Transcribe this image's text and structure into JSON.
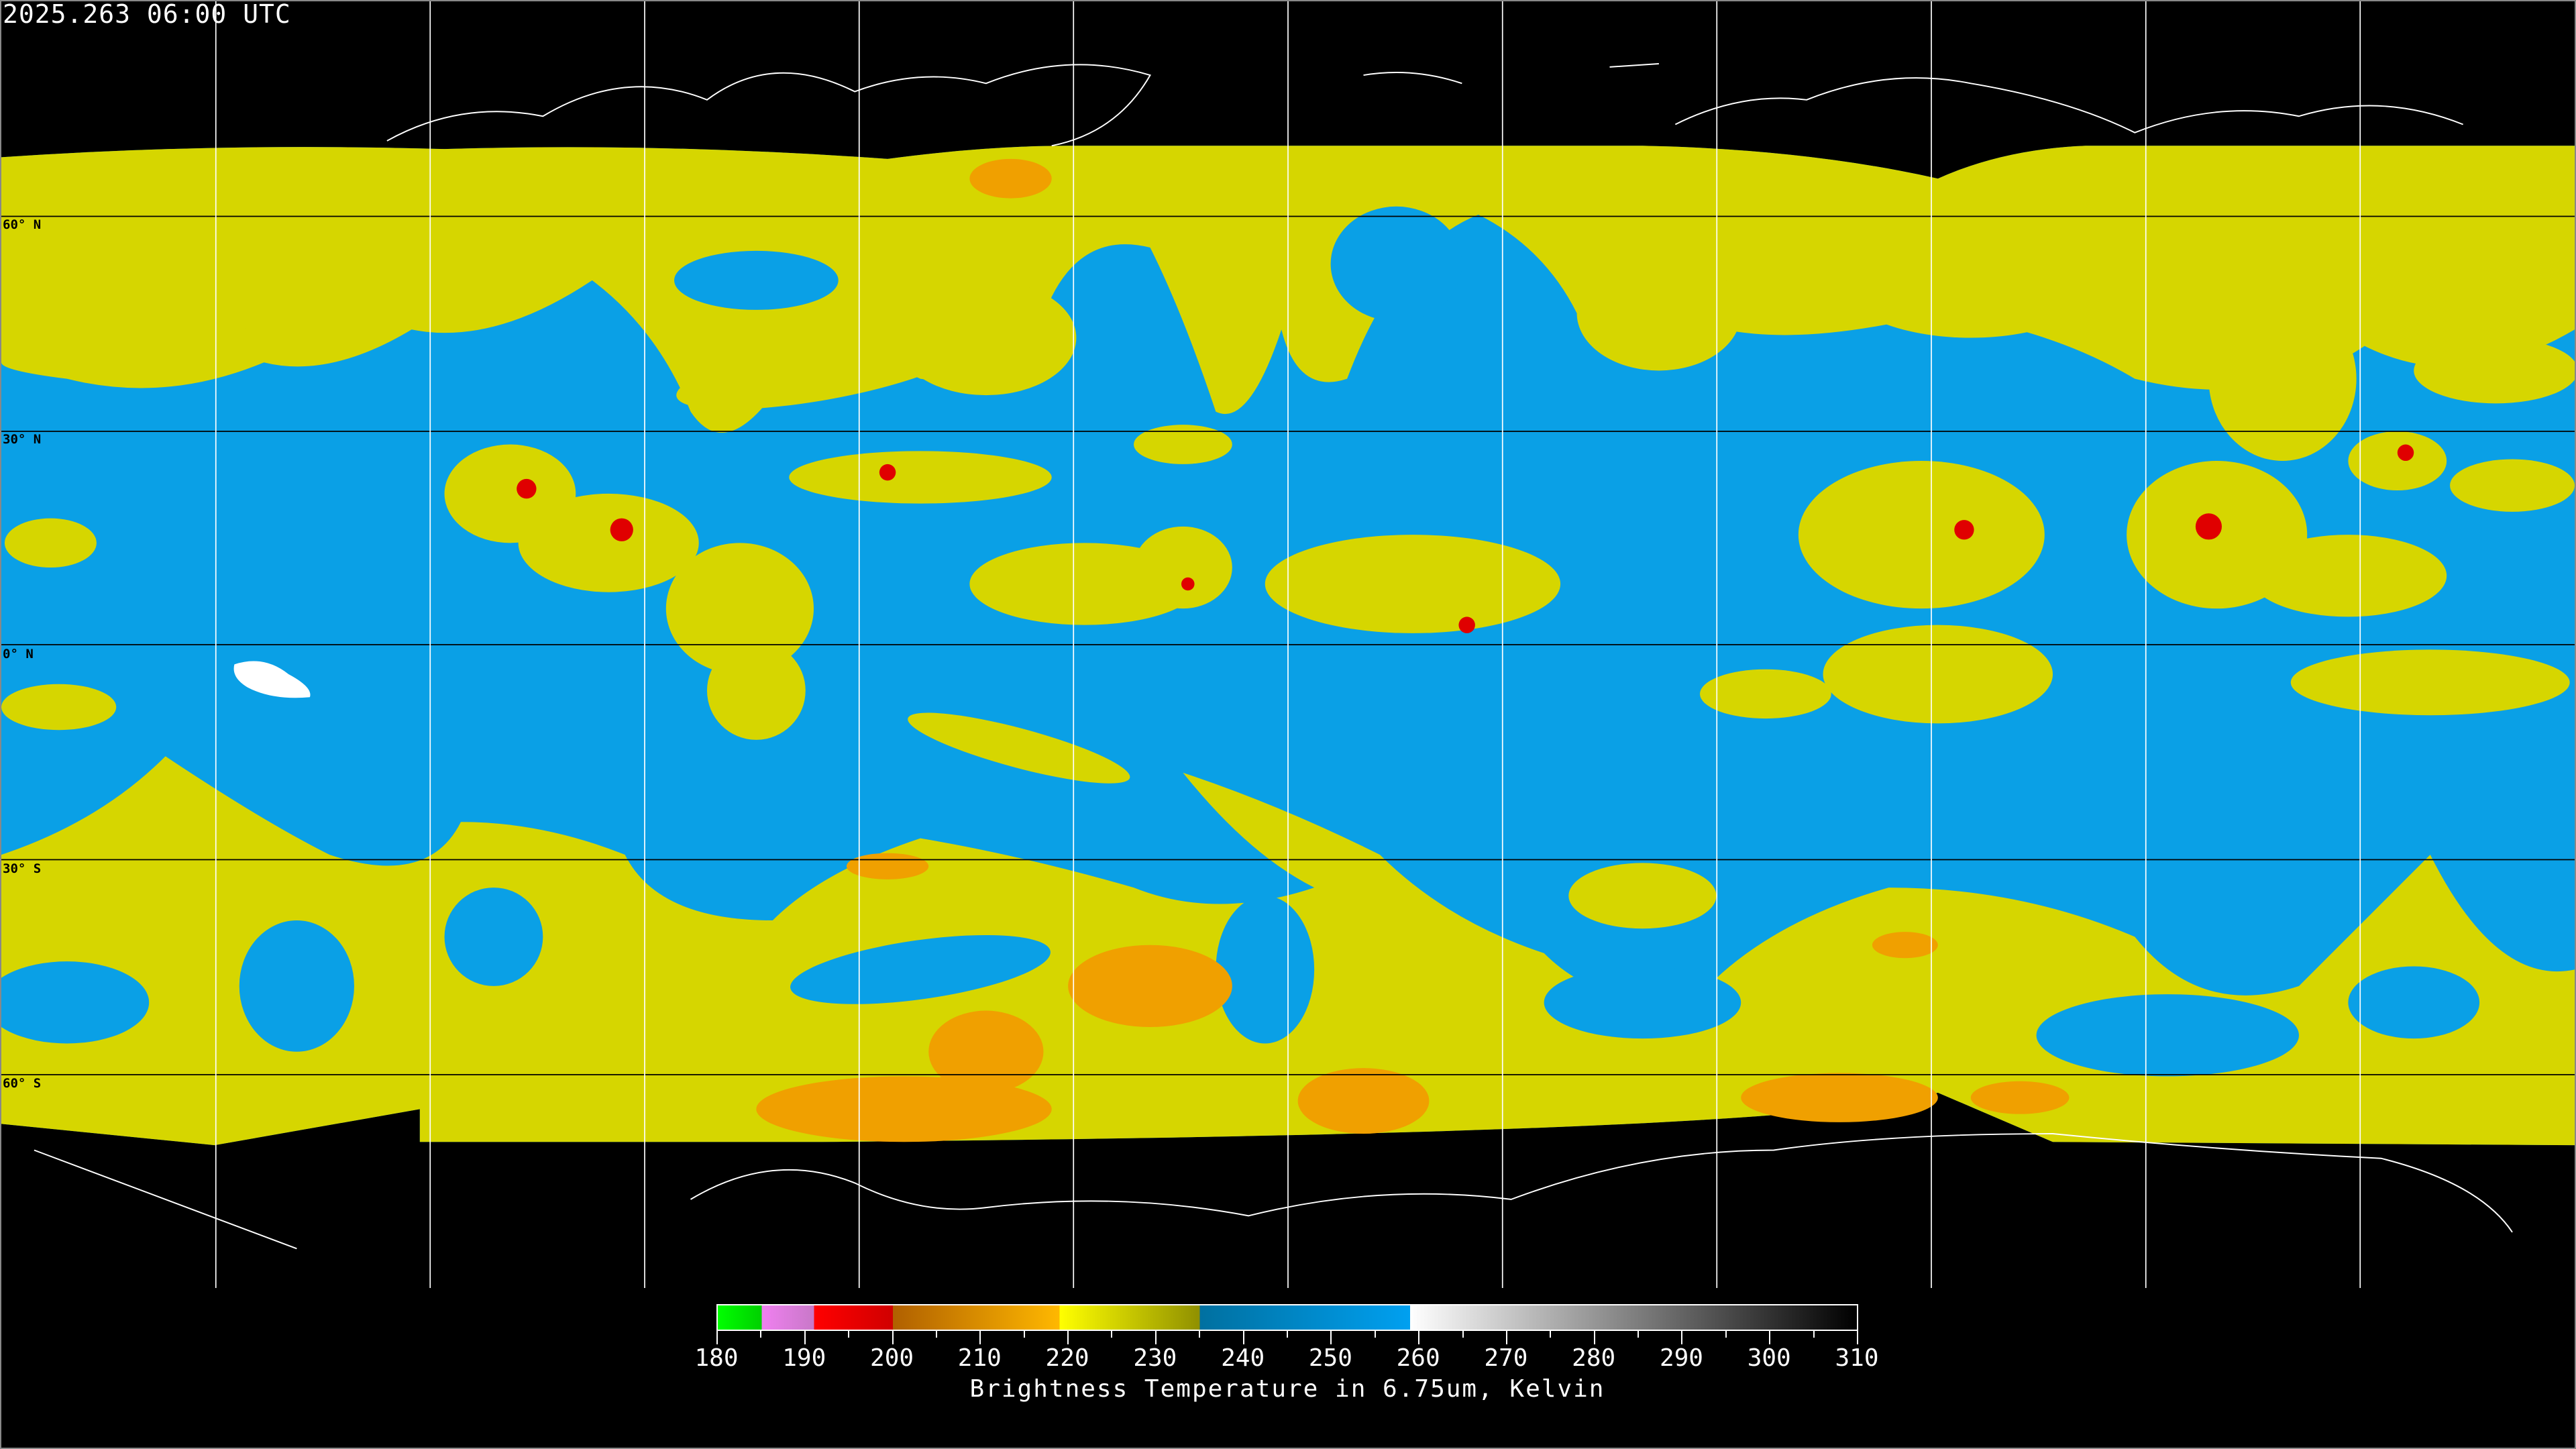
{
  "title": "2025.263 06:00 UTC",
  "map": {
    "projection": "equirectangular",
    "lon_range": [
      -180,
      180
    ],
    "lat_range": [
      -90,
      90
    ],
    "grid_spacing_deg": 30,
    "lat_labels": [
      "60° N",
      "30° N",
      "0° N",
      "30° S",
      "60° S"
    ],
    "colors": {
      "clear_sky": "#0aa0e6",
      "cloud": "#d6d600",
      "cold_cloud": "#f0a000",
      "deep_convection": "#e00000",
      "no_data": "#000000"
    }
  },
  "colorbar": {
    "title": "Brightness Temperature in 6.75um, Kelvin",
    "min": 180,
    "max": 310,
    "tick_labels": [
      "180",
      "190",
      "200",
      "210",
      "220",
      "230",
      "240",
      "250",
      "260",
      "270",
      "280",
      "290",
      "300",
      "310"
    ],
    "stops": [
      {
        "from": 180,
        "to": 185,
        "c1": "#00ff00",
        "c2": "#00d000"
      },
      {
        "from": 185,
        "to": 191,
        "c1": "#f080f0",
        "c2": "#c878c8"
      },
      {
        "from": 191,
        "to": 200,
        "c1": "#ff0000",
        "c2": "#d00000"
      },
      {
        "from": 200,
        "to": 219,
        "c1": "#b06000",
        "c2": "#ffb800"
      },
      {
        "from": 219,
        "to": 235,
        "c1": "#ffff00",
        "c2": "#909000"
      },
      {
        "from": 235,
        "to": 259,
        "c1": "#0070a0",
        "c2": "#00a0f0"
      },
      {
        "from": 259,
        "to": 310,
        "c1": "#ffffff",
        "c2": "#000000"
      }
    ]
  }
}
